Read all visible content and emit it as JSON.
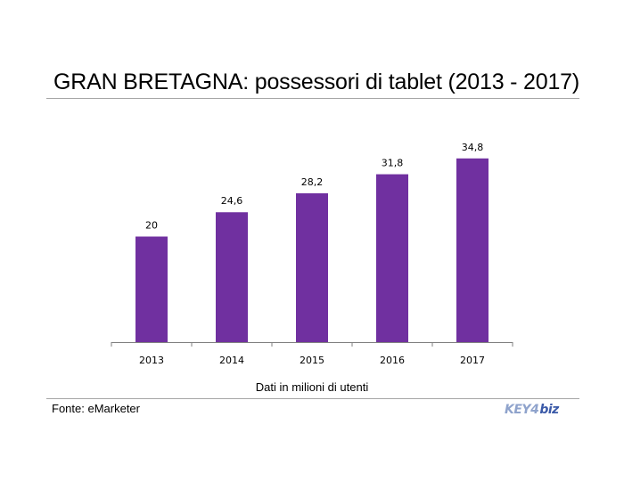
{
  "header": {
    "title": "GRAN BRETAGNA: possessori di tablet (2013 - 2017)"
  },
  "footer": {
    "source": "Fonte: eMarketer",
    "logo_key": "KEY",
    "logo_num": "4",
    "logo_biz": "biz"
  },
  "colors": {
    "bar": "#7030a0",
    "axis": "#808080"
  },
  "chart_data": {
    "type": "bar",
    "title": "GRAN BRETAGNA: possessori di tablet (2013 - 2017)",
    "categories": [
      "2013",
      "2014",
      "2015",
      "2016",
      "2017"
    ],
    "values": [
      20,
      24.6,
      28.2,
      31.8,
      34.8
    ],
    "data_labels": [
      "20",
      "24,6",
      "28,2",
      "31,8",
      "34,8"
    ],
    "xlabel": "Dati in milioni di utenti",
    "ylabel": "",
    "ylim": [
      0,
      40
    ],
    "grid": false,
    "legend": "none"
  }
}
